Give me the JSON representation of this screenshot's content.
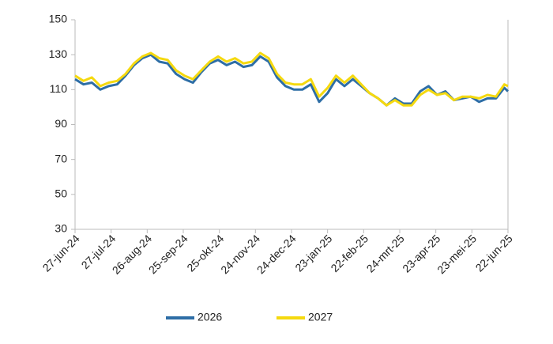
{
  "chart_data": {
    "type": "line",
    "x": [
      "2024-06-27",
      "2024-07-04",
      "2024-07-11",
      "2024-07-18",
      "2024-07-25",
      "2024-08-01",
      "2024-08-08",
      "2024-08-15",
      "2024-08-22",
      "2024-08-29",
      "2024-09-05",
      "2024-09-12",
      "2024-09-19",
      "2024-09-26",
      "2024-10-03",
      "2024-10-10",
      "2024-10-17",
      "2024-10-24",
      "2024-10-31",
      "2024-11-07",
      "2024-11-14",
      "2024-11-21",
      "2024-11-28",
      "2024-12-05",
      "2024-12-12",
      "2024-12-19",
      "2024-12-26",
      "2025-01-02",
      "2025-01-09",
      "2025-01-16",
      "2025-01-23",
      "2025-01-30",
      "2025-02-06",
      "2025-02-13",
      "2025-02-20",
      "2025-02-27",
      "2025-03-06",
      "2025-03-13",
      "2025-03-20",
      "2025-03-27",
      "2025-04-03",
      "2025-04-10",
      "2025-04-17",
      "2025-04-24",
      "2025-05-01",
      "2025-05-08",
      "2025-05-15",
      "2025-05-22",
      "2025-05-29",
      "2025-06-05",
      "2025-06-12",
      "2025-06-19",
      "2025-06-22"
    ],
    "series": [
      {
        "name": "2026",
        "color": "#2e6ea6",
        "values": [
          116,
          113,
          114,
          110,
          112,
          113,
          118,
          124,
          128,
          130,
          126,
          125,
          119,
          116,
          114,
          120,
          125,
          127,
          124,
          126,
          123,
          124,
          129,
          126,
          117,
          112,
          110,
          110,
          113,
          103,
          108,
          116,
          112,
          116,
          112,
          108,
          105,
          101,
          105,
          102,
          102,
          109,
          112,
          107,
          109,
          104,
          105,
          106,
          103,
          105,
          105,
          111,
          109
        ]
      },
      {
        "name": "2027",
        "color": "#f5d90f",
        "values": [
          118,
          115,
          117,
          112,
          114,
          115,
          119,
          125,
          129,
          131,
          128,
          127,
          121,
          118,
          116,
          121,
          126,
          129,
          126,
          128,
          125,
          126,
          131,
          128,
          119,
          114,
          113,
          113,
          116,
          106,
          111,
          118,
          114,
          118,
          113,
          108,
          105,
          101,
          104,
          101,
          101,
          107,
          110,
          107,
          108,
          104,
          106,
          106,
          105,
          107,
          106,
          113,
          112
        ]
      }
    ],
    "xlim": [
      "2024-06-27",
      "2025-06-22"
    ],
    "xticks": [
      {
        "value": "2024-06-27",
        "label": "27-jun-24"
      },
      {
        "value": "2024-07-27",
        "label": "27-jul-24"
      },
      {
        "value": "2024-08-26",
        "label": "26-aug-24"
      },
      {
        "value": "2024-09-25",
        "label": "25-sep-24"
      },
      {
        "value": "2024-10-25",
        "label": "25-okt-24"
      },
      {
        "value": "2024-11-24",
        "label": "24-nov-24"
      },
      {
        "value": "2024-12-24",
        "label": "24-dec-24"
      },
      {
        "value": "2025-01-23",
        "label": "23-jan-25"
      },
      {
        "value": "2025-02-22",
        "label": "22-feb-25"
      },
      {
        "value": "2025-03-24",
        "label": "24-mrt-25"
      },
      {
        "value": "2025-04-23",
        "label": "23-apr-25"
      },
      {
        "value": "2025-05-23",
        "label": "23-mei-25"
      },
      {
        "value": "2025-06-22",
        "label": "22-jun-25"
      }
    ],
    "ylim": [
      30,
      150
    ],
    "yticks": [
      30,
      50,
      70,
      90,
      110,
      130,
      150
    ],
    "grid": false,
    "legend": "bottom"
  }
}
